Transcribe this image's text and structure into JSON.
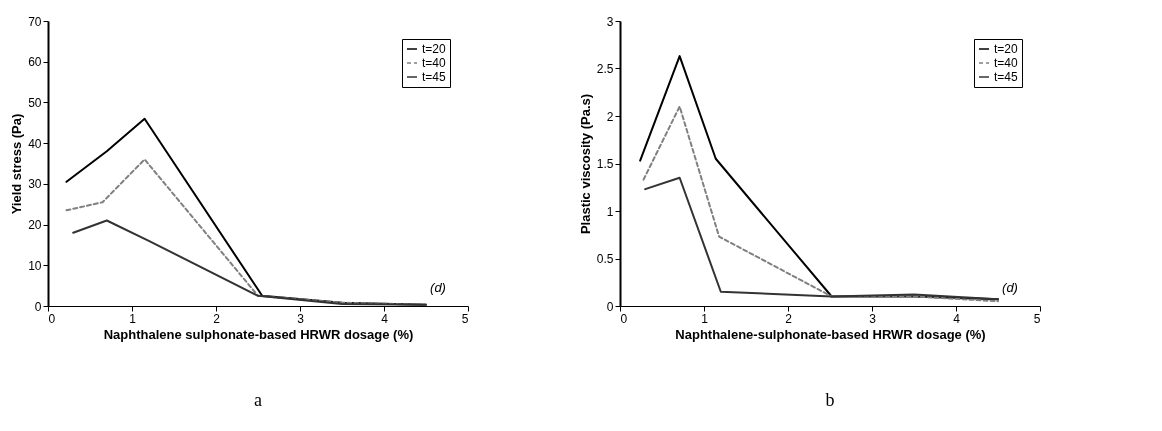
{
  "chart_data": [
    {
      "type": "line",
      "xlabel": "Naphthalene sulphonate-based HRWR dosage (%)",
      "ylabel": "Yield stress (Pa)",
      "xlim": [
        0,
        5
      ],
      "xticks": [
        0,
        1,
        2,
        3,
        4,
        5
      ],
      "ylim": [
        0,
        70
      ],
      "yticks": [
        0,
        10,
        20,
        30,
        40,
        50,
        60,
        70
      ],
      "legend": "top right",
      "annotations": [
        "(d)",
        "a"
      ],
      "series": [
        {
          "name": "t=20",
          "color": "#000000",
          "line_style": "solid",
          "x": [
            0.22,
            0.7,
            1.15,
            2.55,
            3.5,
            4.5
          ],
          "values": [
            30.5,
            38,
            46,
            2.5,
            0.8,
            0.3
          ]
        },
        {
          "name": "t=40",
          "color": "#808080",
          "line_style": "dashed",
          "x": [
            0.22,
            0.65,
            1.15,
            2.5,
            3.5,
            4.5
          ],
          "values": [
            23.5,
            25.5,
            36,
            2.5,
            0.8,
            0.3
          ]
        },
        {
          "name": "t=45",
          "color": "#333333",
          "line_style": "solid",
          "x": [
            0.3,
            0.7,
            1.2,
            2.5,
            3.5,
            4.5
          ],
          "values": [
            18,
            21,
            16,
            2.5,
            0.5,
            0.3
          ]
        }
      ]
    },
    {
      "type": "line",
      "xlabel": "Naphthalene-sulphonate-based HRWR dosage (%)",
      "ylabel": "Plastic viscosity (Pa.s)",
      "xlim": [
        0,
        5
      ],
      "xticks": [
        0,
        1,
        2,
        3,
        4,
        5
      ],
      "ylim": [
        0,
        3
      ],
      "yticks": [
        0,
        0.5,
        1,
        1.5,
        2,
        2.5,
        3
      ],
      "legend": "top right",
      "annotations": [
        "(d)",
        "b"
      ],
      "series": [
        {
          "name": "t=20",
          "color": "#000000",
          "line_style": "solid",
          "x": [
            0.24,
            0.71,
            1.14,
            2.52,
            3.5,
            4.5
          ],
          "values": [
            1.53,
            2.63,
            1.55,
            0.1,
            0.1,
            0.07
          ]
        },
        {
          "name": "t=40",
          "color": "#808080",
          "line_style": "dashed",
          "x": [
            0.28,
            0.71,
            1.18,
            2.52,
            3.5,
            4.5
          ],
          "values": [
            1.33,
            2.1,
            0.73,
            0.1,
            0.1,
            0.05
          ]
        },
        {
          "name": "t=45",
          "color": "#333333",
          "line_style": "solid",
          "x": [
            0.3,
            0.71,
            1.2,
            2.52,
            3.5,
            4.5
          ],
          "values": [
            1.23,
            1.35,
            0.15,
            0.1,
            0.12,
            0.07
          ]
        }
      ]
    }
  ]
}
